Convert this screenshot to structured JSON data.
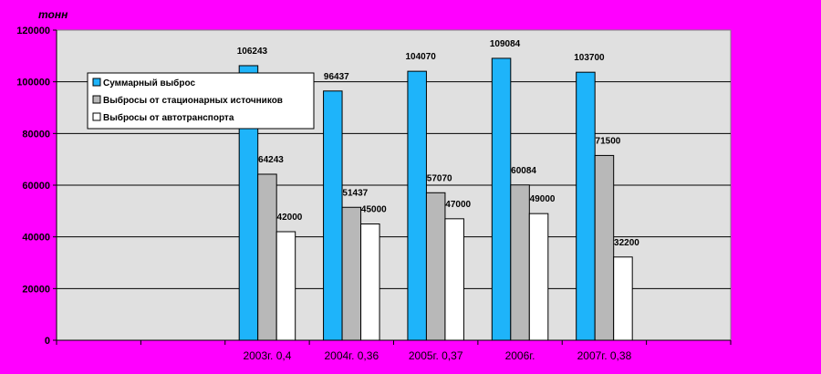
{
  "chart_data": {
    "type": "bar",
    "unit_label": "тонн",
    "categories": [
      "",
      "",
      "2003г. 0,4",
      "2004г. 0,36",
      "2005г. 0,37",
      "2006г.",
      "2007г. 0,38",
      ""
    ],
    "series": [
      {
        "name": "Суммарный выброс",
        "color": "#1EB4FA",
        "values": [
          null,
          null,
          106243,
          96437,
          104070,
          109084,
          103700,
          null
        ]
      },
      {
        "name": "Выбросы от стационарных источников",
        "color": "#B8B8B8",
        "values": [
          null,
          null,
          64243,
          51437,
          57070,
          60084,
          71500,
          null
        ]
      },
      {
        "name": "Выбросы от автотранспорта",
        "color": "#FFFFFF",
        "values": [
          null,
          null,
          42000,
          45000,
          47000,
          49000,
          32200,
          null
        ]
      }
    ],
    "ylim": [
      0,
      120000
    ],
    "yticks": [
      0,
      20000,
      40000,
      60000,
      80000,
      100000,
      120000
    ],
    "grid": true,
    "plot_background": "#E0E0E0",
    "legend_position": "top-left"
  }
}
